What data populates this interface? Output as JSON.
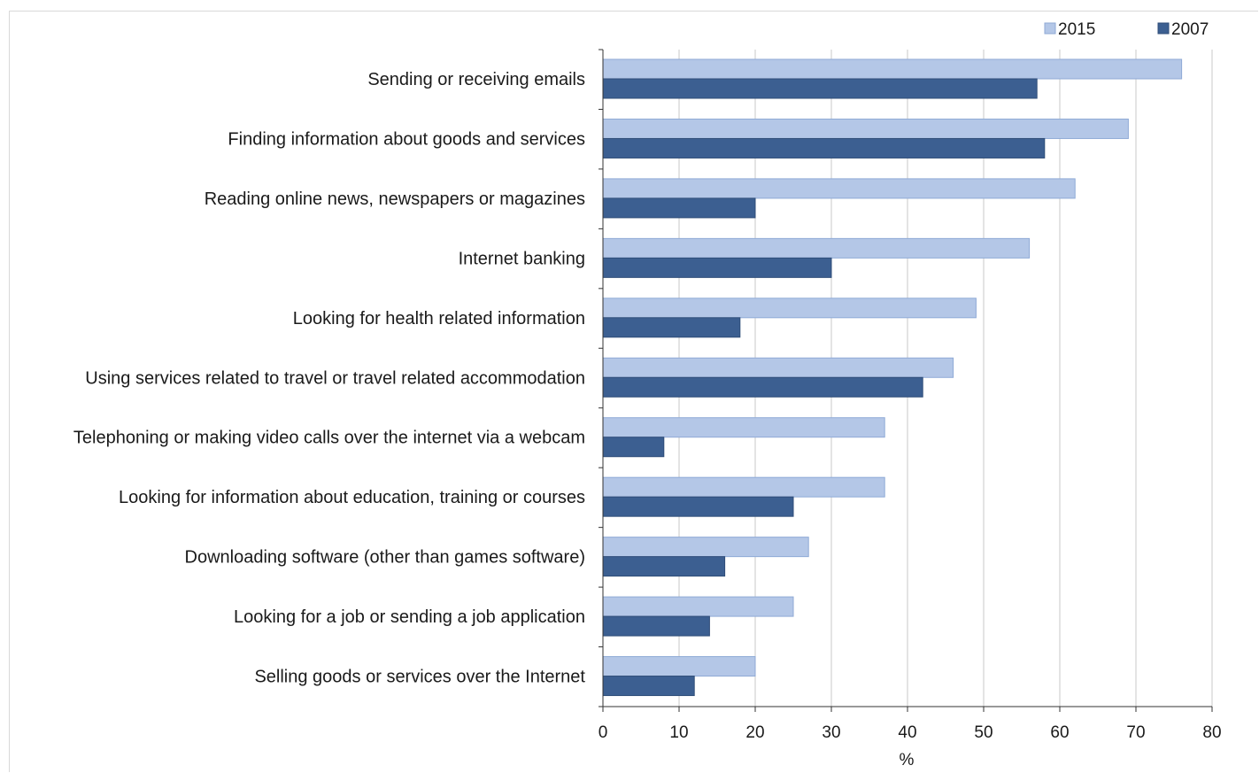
{
  "chart_data": {
    "type": "bar",
    "orientation": "horizontal",
    "categories": [
      "Sending or receiving emails",
      "Finding information about goods and services",
      "Reading online news, newspapers or magazines",
      "Internet banking",
      "Looking for health related information",
      "Using services related to travel or travel related accommodation",
      "Telephoning or making video calls over the internet via a webcam",
      "Looking for information about education, training or courses",
      "Downloading software (other than games software)",
      "Looking for a job or sending a job application",
      "Selling goods or services over the Internet"
    ],
    "series": [
      {
        "name": "2015",
        "color": "#b4c7e7",
        "values": [
          76,
          69,
          62,
          56,
          49,
          46,
          37,
          37,
          27,
          25,
          20
        ]
      },
      {
        "name": "2007",
        "color": "#3c5f91",
        "values": [
          57,
          58,
          20,
          30,
          18,
          42,
          8,
          25,
          16,
          14,
          12
        ]
      }
    ],
    "xlabel": "%",
    "xlim": [
      0,
      80
    ],
    "xticks": [
      0,
      10,
      20,
      30,
      40,
      50,
      60,
      70,
      80
    ],
    "grid": "vertical",
    "legend": "top-right"
  }
}
